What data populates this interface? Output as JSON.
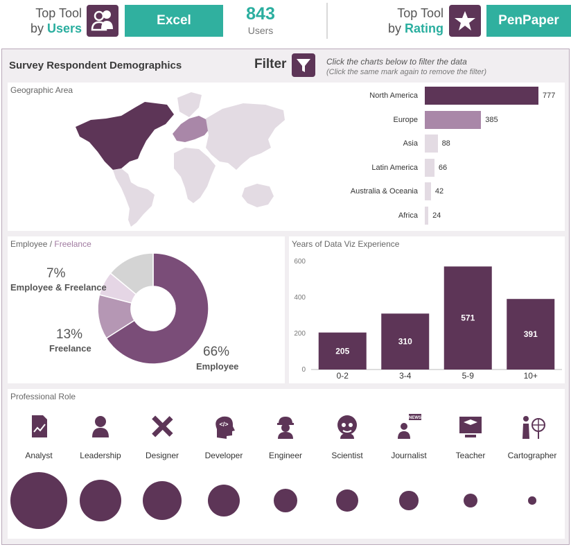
{
  "kpi": {
    "users_label_line1": "Top Tool",
    "users_label_line2_prefix": "by ",
    "users_label_line2_hl": "Users",
    "users_tool": "Excel",
    "count_value": "843",
    "count_unit": "Users",
    "rating_label_line1": "Top Tool",
    "rating_label_line2_prefix": "by ",
    "rating_label_line2_hl": "Rating",
    "rating_tool": "PenPaper",
    "users_icon": "users-icon",
    "rating_icon": "star-icon"
  },
  "dashboard": {
    "title": "Survey Respondent Demographics",
    "filter_label": "Filter",
    "filter_icon": "funnel-icon",
    "hint_line1": "Click the charts below to filter the data",
    "hint_line2": "(Click the same mark again to remove the filter)"
  },
  "colors": {
    "accent": "#2aae9f",
    "tool_bg": "#30b09f",
    "brand_dark": "#5d3557",
    "mid": "#a987a8",
    "light": "#e3dbe3",
    "donut_employee": "#7a4d78",
    "donut_freelance": "#b597b4",
    "donut_both": "#e5d6e5",
    "donut_unknown": "#d4d4d4"
  },
  "geo": {
    "title": "Geographic Area"
  },
  "employment": {
    "title_a": "Employee",
    "title_sep": " / ",
    "title_b": "Freelance",
    "labels": {
      "both_pct": "7%",
      "both_name": "Employee & Freelance",
      "free_pct": "13%",
      "free_name": "Freelance",
      "emp_pct": "66%",
      "emp_name": "Employee"
    }
  },
  "experience": {
    "title": "Years of Data Viz Experience"
  },
  "roles": {
    "title": "Professional Role",
    "items": [
      {
        "name": "Analyst",
        "icon": "analyst-chart-icon"
      },
      {
        "name": "Leadership",
        "icon": "leader-person-icon"
      },
      {
        "name": "Designer",
        "icon": "ruler-pencil-icon"
      },
      {
        "name": "Developer",
        "icon": "developer-head-icon"
      },
      {
        "name": "Engineer",
        "icon": "hardhat-engineer-icon"
      },
      {
        "name": "Scientist",
        "icon": "scientist-icon"
      },
      {
        "name": "Journalist",
        "icon": "news-journalist-icon"
      },
      {
        "name": "Teacher",
        "icon": "teacher-board-icon"
      },
      {
        "name": "Cartographer",
        "icon": "globe-cartographer-icon"
      }
    ]
  },
  "chart_data": [
    {
      "type": "bar",
      "orientation": "horizontal",
      "title": "Geographic Area",
      "categories": [
        "North America",
        "Europe",
        "Asia",
        "Latin America",
        "Australia & Oceania",
        "Africa"
      ],
      "values": [
        777,
        385,
        88,
        66,
        42,
        24
      ],
      "data_labels": [
        "777",
        "385",
        "88",
        "66",
        "42",
        "24"
      ],
      "colors": [
        "#5d3557",
        "#a987a8",
        "#e3dbe3",
        "#e3dbe3",
        "#e3dbe3",
        "#e3dbe3"
      ]
    },
    {
      "type": "pie",
      "title": "Employee / Freelance",
      "donut": true,
      "categories": [
        "Employee",
        "Freelance",
        "Employee & Freelance",
        ""
      ],
      "values": [
        66,
        13,
        7,
        14
      ],
      "colors": [
        "#7a4d78",
        "#b597b4",
        "#e5d6e5",
        "#d4d4d4"
      ]
    },
    {
      "type": "bar",
      "title": "Years of Data Viz Experience",
      "categories": [
        "0-2",
        "3-4",
        "5-9",
        "10+"
      ],
      "values": [
        205,
        310,
        571,
        391
      ],
      "data_labels": [
        "205",
        "310",
        "571",
        "391"
      ],
      "ylim": [
        0,
        630
      ],
      "yticks": [
        "0",
        "200",
        "400",
        "600"
      ],
      "grid": false
    },
    {
      "type": "scatter",
      "title": "Professional Role",
      "encoding": "bubble size",
      "categories": [
        "Analyst",
        "Leadership",
        "Designer",
        "Developer",
        "Engineer",
        "Scientist",
        "Journalist",
        "Teacher",
        "Cartographer"
      ],
      "relative_size": [
        100,
        53,
        47,
        32,
        17,
        15,
        11,
        6,
        2
      ]
    }
  ]
}
